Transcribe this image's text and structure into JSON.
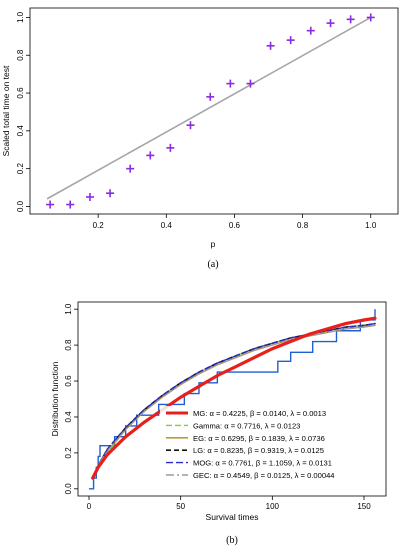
{
  "chart_data": [
    {
      "type": "scatter",
      "panel_label": "(a)",
      "xlabel": "p",
      "ylabel": "Scaled total time on test",
      "xlim": [
        0.05,
        1.0
      ],
      "ylim": [
        0.0,
        1.0
      ],
      "x_ticks": [
        "0.2",
        "0.4",
        "0.6",
        "0.8",
        "1.0"
      ],
      "y_ticks": [
        "0.0",
        "0.2",
        "0.4",
        "0.6",
        "0.8",
        "1.0"
      ],
      "reference_line": {
        "from": [
          0.05,
          0.04
        ],
        "to": [
          1.0,
          1.0
        ],
        "color": "#a6a6a6"
      },
      "marker": "+",
      "marker_color": "#8a2be2",
      "series": [
        {
          "x": [
            0.059,
            0.118,
            0.176,
            0.235,
            0.294,
            0.353,
            0.412,
            0.471,
            0.529,
            0.588,
            0.647,
            0.706,
            0.765,
            0.824,
            0.882,
            0.941,
            1.0
          ],
          "y": [
            0.01,
            0.01,
            0.05,
            0.07,
            0.2,
            0.27,
            0.31,
            0.43,
            0.58,
            0.65,
            0.65,
            0.85,
            0.88,
            0.93,
            0.97,
            0.99,
            1.0
          ]
        }
      ]
    },
    {
      "type": "line",
      "panel_label": "(b)",
      "xlabel": "Survival times",
      "ylabel": "Distribution function",
      "xlim": [
        0,
        160
      ],
      "ylim": [
        0.0,
        1.0
      ],
      "x_ticks": [
        "0",
        "50",
        "100",
        "150"
      ],
      "y_ticks": [
        "0.0",
        "0.2",
        "0.4",
        "0.6",
        "0.8",
        "1.0"
      ],
      "legend_position": "bottom-right",
      "empirical": {
        "color": "#1f5fd6",
        "steps": [
          [
            0,
            0
          ],
          [
            2.5,
            0.06
          ],
          [
            4,
            0.12
          ],
          [
            5,
            0.18
          ],
          [
            6,
            0.24
          ],
          [
            14,
            0.29
          ],
          [
            20,
            0.35
          ],
          [
            26,
            0.41
          ],
          [
            38,
            0.47
          ],
          [
            52,
            0.53
          ],
          [
            60,
            0.59
          ],
          [
            70,
            0.65
          ],
          [
            103,
            0.71
          ],
          [
            110,
            0.76
          ],
          [
            122,
            0.82
          ],
          [
            135,
            0.88
          ],
          [
            148,
            0.94
          ],
          [
            156,
            1.0
          ]
        ]
      },
      "series": [
        {
          "name": "MG: α = 0.4225, β = 0.0140, λ = 0.0013",
          "color": "#e8201c",
          "dash": "solid",
          "width": 3.2,
          "x": [
            2,
            5,
            10,
            20,
            30,
            40,
            50,
            60,
            70,
            80,
            90,
            100,
            110,
            120,
            130,
            140,
            150,
            156
          ],
          "y": [
            0.06,
            0.12,
            0.19,
            0.29,
            0.37,
            0.44,
            0.51,
            0.57,
            0.63,
            0.68,
            0.73,
            0.78,
            0.82,
            0.86,
            0.89,
            0.92,
            0.94,
            0.95
          ]
        },
        {
          "name": "Gamma: α = 0.7716, λ = 0.0123",
          "color": "#7ccd3f",
          "dash": "6,3",
          "width": 1.3,
          "x": [
            2,
            5,
            10,
            20,
            30,
            40,
            50,
            60,
            70,
            80,
            90,
            100,
            110,
            120,
            130,
            140,
            150,
            156
          ],
          "y": [
            0.05,
            0.12,
            0.2,
            0.33,
            0.43,
            0.52,
            0.59,
            0.65,
            0.7,
            0.74,
            0.78,
            0.81,
            0.84,
            0.86,
            0.88,
            0.9,
            0.91,
            0.92
          ]
        },
        {
          "name": "EG: α = 0.6295, β = 0.1839, λ = 0.0736",
          "color": "#b8860b",
          "dash": "solid",
          "width": 1.2,
          "x": [
            2,
            5,
            10,
            20,
            30,
            40,
            50,
            60,
            70,
            80,
            90,
            100,
            110,
            120,
            130,
            140,
            150,
            156
          ],
          "y": [
            0.06,
            0.13,
            0.21,
            0.33,
            0.43,
            0.51,
            0.58,
            0.64,
            0.69,
            0.73,
            0.77,
            0.8,
            0.83,
            0.85,
            0.87,
            0.89,
            0.9,
            0.91
          ]
        },
        {
          "name": "LG: α = 0.8235, β = 0.9319, λ = 0.0125",
          "color": "#111111",
          "dash": "5,3",
          "width": 1.6,
          "x": [
            2,
            5,
            10,
            20,
            30,
            40,
            50,
            60,
            70,
            80,
            90,
            100,
            110,
            120,
            130,
            140,
            150,
            156
          ],
          "y": [
            0.06,
            0.13,
            0.22,
            0.34,
            0.44,
            0.52,
            0.59,
            0.65,
            0.7,
            0.74,
            0.78,
            0.81,
            0.84,
            0.86,
            0.88,
            0.9,
            0.91,
            0.92
          ]
        },
        {
          "name": "MOG: α = 0.7761, β = 1.1059, λ = 0.0131",
          "color": "#2b2bc8",
          "dash": "7,3",
          "width": 1.3,
          "x": [
            2,
            5,
            10,
            20,
            30,
            40,
            50,
            60,
            70,
            80,
            90,
            100,
            110,
            120,
            130,
            140,
            150,
            156
          ],
          "y": [
            0.06,
            0.13,
            0.22,
            0.34,
            0.44,
            0.52,
            0.59,
            0.65,
            0.7,
            0.74,
            0.78,
            0.81,
            0.84,
            0.86,
            0.88,
            0.9,
            0.91,
            0.92
          ]
        },
        {
          "name": "GEC: α = 0.4549, β = 0.0125, λ = 0.00044",
          "color": "#9c9c9c",
          "dash": "8,3,2,3",
          "width": 1.4,
          "x": [
            2,
            5,
            10,
            20,
            30,
            40,
            50,
            60,
            70,
            80,
            90,
            100,
            110,
            120,
            130,
            140,
            150,
            156
          ],
          "y": [
            0.06,
            0.13,
            0.21,
            0.33,
            0.43,
            0.51,
            0.58,
            0.64,
            0.69,
            0.73,
            0.77,
            0.8,
            0.83,
            0.85,
            0.87,
            0.89,
            0.9,
            0.91
          ]
        }
      ]
    }
  ]
}
